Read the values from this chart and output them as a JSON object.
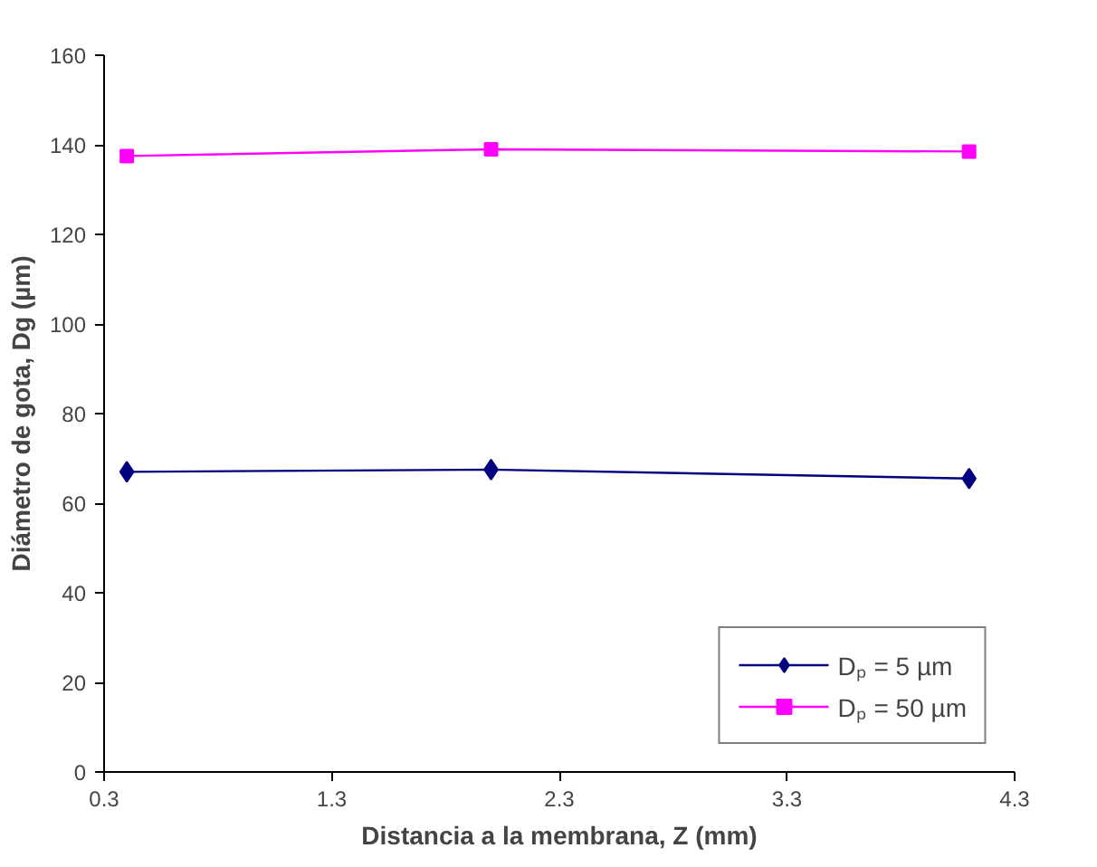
{
  "chart_data": {
    "type": "line",
    "xlabel": "Distancia a la membrana, Z (mm)",
    "ylabel": "Diámetro de gota, Dg (µm)",
    "xlim": [
      0.3,
      4.3
    ],
    "xticks": [
      0.3,
      1.3,
      2.3,
      3.3,
      4.3
    ],
    "ylim": [
      0,
      160
    ],
    "yticks": [
      0,
      20,
      40,
      60,
      80,
      100,
      120,
      140,
      160
    ],
    "grid": false,
    "legend": "bottom right",
    "line_style": "solid",
    "series": [
      {
        "name": "Dₚ = 5 µm",
        "color": "#000080",
        "marker": "diamond",
        "x": [
          0.4,
          2.0,
          4.1
        ],
        "values": [
          67,
          67.5,
          65.5
        ]
      },
      {
        "name": "Dₚ = 50 µm",
        "color": "#ff00ff",
        "marker": "square",
        "x": [
          0.4,
          2.0,
          4.1
        ],
        "values": [
          137.5,
          139,
          138.5
        ]
      }
    ]
  }
}
